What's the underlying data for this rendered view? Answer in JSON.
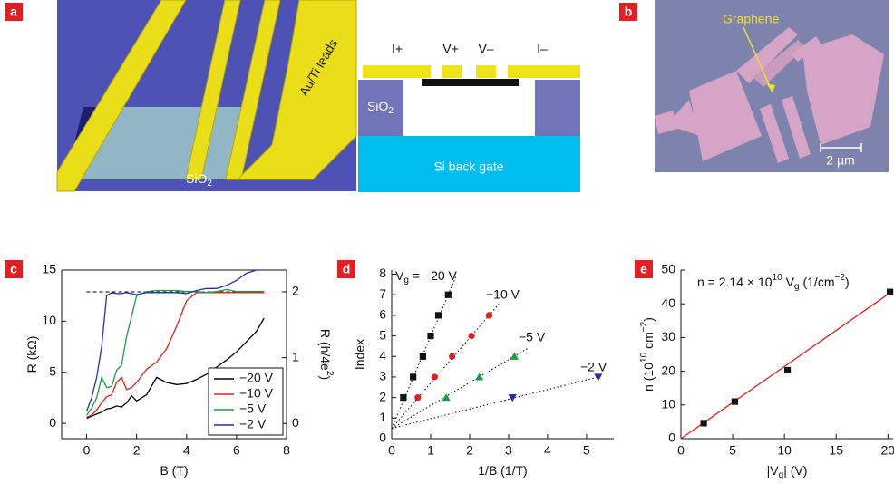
{
  "panel_labels": [
    "a",
    "b",
    "c",
    "d",
    "e"
  ],
  "panels": {
    "a": {
      "leads_label": "Au/Ti leads",
      "substrate_label": [
        "SiO",
        {
          "sub": "2"
        }
      ],
      "contacts": [
        "I+",
        "V+",
        "V–",
        "I–"
      ],
      "oxide_label": [
        "SiO",
        {
          "sub": "2"
        }
      ],
      "gate_label": "Si back gate"
    },
    "b": {
      "label": "Graphene",
      "scale_bar": "2 µm"
    }
  },
  "chart_data": [
    {
      "type": "line",
      "xlabel": [
        "B",
        " (T)"
      ],
      "ylabel": [
        "R",
        " (kΩ)"
      ],
      "y2label": [
        "R",
        " (h/4e",
        {
          "sup": "2"
        },
        ")"
      ],
      "xlim": [
        -1,
        8
      ],
      "ylim": [
        -1.5,
        15
      ],
      "y2lim": [
        -0.23,
        2.33
      ],
      "xticks": [
        0,
        2,
        4,
        6,
        8
      ],
      "yticks": [
        0,
        5,
        10,
        15
      ],
      "y2ticks": [
        0,
        1,
        2
      ],
      "legend": "lower right",
      "ref_line": {
        "axis": "y2",
        "value": 2,
        "color": "#000000"
      },
      "x": [
        0,
        0.2,
        0.4,
        0.6,
        0.8,
        1,
        1.2,
        1.4,
        1.6,
        1.8,
        2,
        2.4,
        2.8,
        3.2,
        3.6,
        4,
        4.4,
        4.8,
        5.2,
        5.6,
        6,
        6.4,
        6.8,
        7.1
      ],
      "series": [
        {
          "name": "−20 V",
          "color": "#000000",
          "values": [
            0.5,
            0.7,
            0.9,
            1.1,
            1.4,
            1.5,
            1.7,
            1.6,
            2.0,
            2.7,
            2.2,
            2.8,
            4.5,
            4.0,
            3.8,
            3.9,
            4.3,
            4.8,
            5.5,
            6.2,
            7.0,
            8.0,
            9.0,
            10.3
          ]
        },
        {
          "name": "−10 V",
          "color": "#e0201b",
          "values": [
            0.6,
            0.8,
            1.3,
            2.0,
            2.6,
            2.8,
            4.0,
            4.5,
            3.3,
            3.5,
            4.0,
            5.3,
            6.0,
            7.3,
            9.5,
            12.0,
            12.8,
            12.8,
            12.8,
            12.8,
            12.8,
            12.8,
            12.8,
            12.8
          ]
        },
        {
          "name": "−5 V",
          "color": "#14a03c",
          "values": [
            0.8,
            1.5,
            2.5,
            4.5,
            3.5,
            3.6,
            5.2,
            5.7,
            8.5,
            10.5,
            12.5,
            12.9,
            13.0,
            13.0,
            13.0,
            12.9,
            12.9,
            12.8,
            12.9,
            13.1,
            12.9,
            12.9,
            12.9,
            12.9
          ]
        },
        {
          "name": "−2 V",
          "color": "#2a2f9a",
          "values": [
            1.2,
            2.5,
            4.5,
            7.5,
            12.5,
            12.8,
            12.7,
            12.7,
            12.8,
            12.7,
            12.6,
            12.8,
            12.8,
            12.8,
            12.8,
            12.7,
            13.0,
            13.2,
            13.2,
            13.5,
            14.0,
            14.7,
            15,
            15
          ]
        }
      ]
    },
    {
      "type": "scatter",
      "xlabel": [
        "1/",
        "B",
        " (1/T)"
      ],
      "ylabel": "Index",
      "xlim": [
        0,
        5.7
      ],
      "ylim": [
        0,
        8.2
      ],
      "xticks": [
        0,
        1,
        2,
        3,
        4,
        5
      ],
      "yticks": [
        0,
        1,
        2,
        3,
        4,
        5,
        6,
        7,
        8
      ],
      "series": [
        {
          "name": [
            "V",
            {
              "sub": "g"
            },
            " = −20 V"
          ],
          "color": "#111111",
          "marker": "square",
          "x": [
            0.3,
            0.55,
            0.8,
            1.0,
            1.2,
            1.45
          ],
          "values": [
            2,
            3,
            4,
            5,
            6,
            7
          ],
          "fit": {
            "x": [
              0,
              1.65
            ],
            "y": [
              0.5,
              7.9
            ],
            "color": "#000000",
            "dash": "dotted"
          }
        },
        {
          "name": "−10 V",
          "color": "#e0201b",
          "marker": "circle",
          "x": [
            0.67,
            1.1,
            1.55,
            2.05,
            2.5
          ],
          "values": [
            2,
            3,
            4,
            5,
            6
          ],
          "fit": {
            "x": [
              0,
              2.75
            ],
            "y": [
              0.5,
              6.55
            ],
            "color": "#000000",
            "dash": "dotted"
          }
        },
        {
          "name": "−5 V",
          "color": "#14a03c",
          "marker": "triangle-up",
          "x": [
            1.4,
            2.25,
            3.15
          ],
          "values": [
            2,
            3,
            4
          ],
          "fit": {
            "x": [
              0,
              3.5
            ],
            "y": [
              0.5,
              4.4
            ],
            "color": "#000000",
            "dash": "dotted"
          }
        },
        {
          "name": "−2 V",
          "color": "#2a2f9a",
          "marker": "triangle-down",
          "x": [
            3.1,
            5.3
          ],
          "values": [
            2,
            3
          ],
          "fit": {
            "x": [
              0,
              5.4
            ],
            "y": [
              0.5,
              3.05
            ],
            "color": "#000000",
            "dash": "dotted"
          }
        }
      ]
    },
    {
      "type": "scatter",
      "xlabel": [
        "|V",
        {
          "sub": "g"
        },
        "| (V)"
      ],
      "ylabel": [
        "n",
        " (10",
        {
          "sup": "10"
        },
        " cm",
        {
          "sup": "−2"
        },
        ")"
      ],
      "annotation": [
        "n = 2.14 × 10",
        {
          "sup": "10"
        },
        " V",
        {
          "sub": "g"
        },
        " (1/cm",
        {
          "sup": "−2"
        },
        ")"
      ],
      "xlim": [
        0,
        20.5
      ],
      "ylim": [
        0,
        50
      ],
      "xticks": [
        0,
        5,
        10,
        15,
        20
      ],
      "yticks": [
        0,
        10,
        20,
        30,
        40,
        50
      ],
      "series": [
        {
          "color": "#111111",
          "marker": "square",
          "x": [
            2.2,
            5.2,
            10.3,
            20.2
          ],
          "values": [
            4.6,
            11,
            20.3,
            43.5
          ],
          "fit": {
            "x": [
              0,
              20.5
            ],
            "y": [
              0,
              43.9
            ],
            "color": "#e0201b",
            "dash": "solid"
          }
        }
      ]
    }
  ]
}
